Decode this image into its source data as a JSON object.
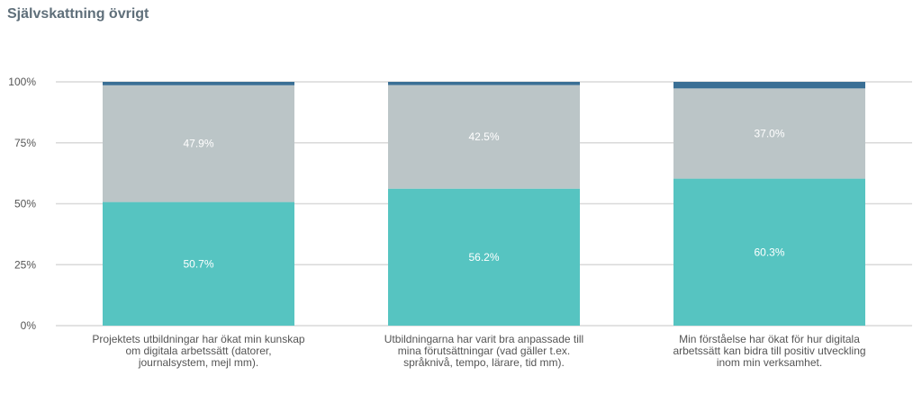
{
  "chart_data": {
    "type": "bar",
    "stacked": true,
    "title": "Självskattning övrigt",
    "ylim": [
      0,
      100
    ],
    "yticks": [
      "0%",
      "25%",
      "50%",
      "75%",
      "100%"
    ],
    "grid": true,
    "categories": [
      [
        "Projektets utbildningar har ökat min kunskap",
        "om digitala arbetssätt (datorer,",
        "journalsystem, mejl mm)."
      ],
      [
        "Utbildningarna har varit bra anpassade till",
        "mina förutsättningar (vad gäller t.ex.",
        "språknivå, tempo, lärare, tid mm)."
      ],
      [
        "Min förståelse har ökat för hur digitala",
        "arbetssätt kan bidra till positiv utveckling",
        "inom min verksamhet."
      ]
    ],
    "series": [
      {
        "values": [
          50.7,
          56.2,
          60.3
        ],
        "labels": [
          "50.7%",
          "56.2%",
          "60.3%"
        ],
        "color": "#56c4c1"
      },
      {
        "values": [
          47.9,
          42.5,
          37.0
        ],
        "labels": [
          "47.9%",
          "42.5%",
          "37.0%"
        ],
        "color": "#bbc5c7"
      },
      {
        "values": [
          1.4,
          1.3,
          2.7
        ],
        "labels": [
          "",
          "",
          ""
        ],
        "color": "#3a6f95"
      }
    ]
  }
}
